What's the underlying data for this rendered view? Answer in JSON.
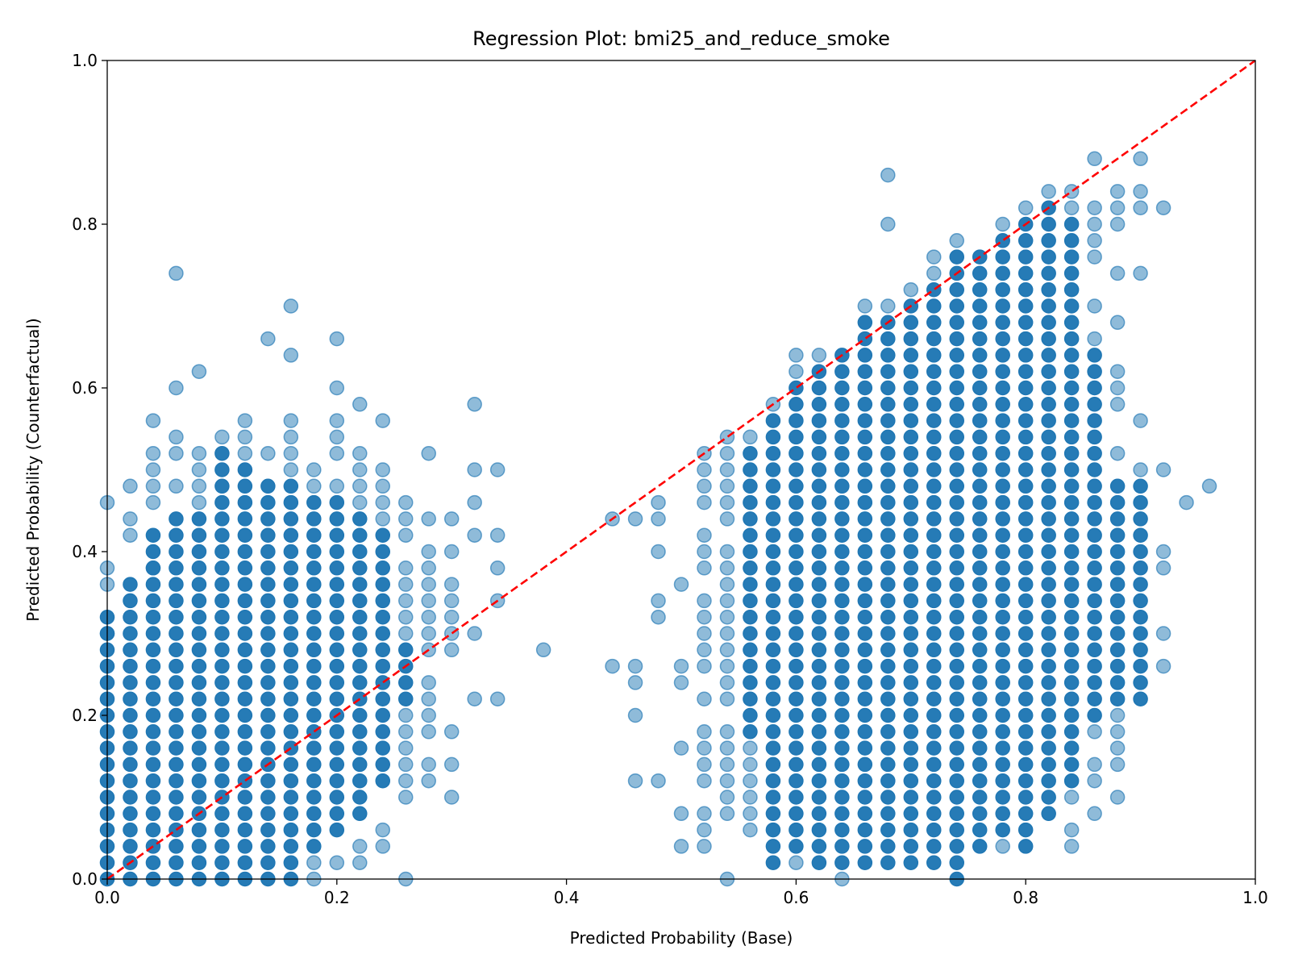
{
  "chart_data": {
    "type": "scatter",
    "title": "Regression Plot: bmi25_and_reduce_smoke",
    "xlabel": "Predicted Probability (Base)",
    "ylabel": "Predicted Probability (Counterfactual)",
    "xlim": [
      0.0,
      1.0
    ],
    "ylim": [
      0.0,
      1.0
    ],
    "xticks": [
      "0.0",
      "0.2",
      "0.4",
      "0.6",
      "0.8",
      "1.0"
    ],
    "yticks": [
      "0.0",
      "0.2",
      "0.4",
      "0.6",
      "0.8",
      "1.0"
    ],
    "grid": false,
    "legend": "none",
    "point_color": "#1f77b4",
    "point_alpha": 0.5,
    "reference_line": {
      "x": [
        0.0,
        1.0
      ],
      "y": [
        0.0,
        1.0
      ],
      "style": "dashed",
      "color": "#ff0000"
    },
    "x_grid_step": 0.02,
    "y_grid_step": 0.02,
    "columns": [
      {
        "x": 0.0,
        "dense": [
          0.0,
          0.32
        ],
        "sparse": [
          0.36,
          0.38,
          0.46,
          0.3
        ]
      },
      {
        "x": 0.02,
        "dense": [
          0.0,
          0.36
        ],
        "sparse": [
          0.42,
          0.44,
          0.48
        ]
      },
      {
        "x": 0.04,
        "dense": [
          0.0,
          0.42
        ],
        "sparse": [
          0.46,
          0.48,
          0.5,
          0.52,
          0.56,
          0.38
        ]
      },
      {
        "x": 0.06,
        "dense": [
          0.0,
          0.44
        ],
        "sparse": [
          0.48,
          0.52,
          0.54,
          0.6,
          0.74
        ]
      },
      {
        "x": 0.08,
        "dense": [
          0.0,
          0.44
        ],
        "sparse": [
          0.46,
          0.48,
          0.5,
          0.52,
          0.62
        ]
      },
      {
        "x": 0.1,
        "dense": [
          0.0,
          0.52
        ],
        "sparse": [
          0.54
        ]
      },
      {
        "x": 0.12,
        "dense": [
          0.0,
          0.5
        ],
        "sparse": [
          0.52,
          0.54,
          0.56
        ]
      },
      {
        "x": 0.14,
        "dense": [
          0.0,
          0.48
        ],
        "sparse": [
          0.52,
          0.66
        ]
      },
      {
        "x": 0.16,
        "dense": [
          0.0,
          0.48
        ],
        "sparse": [
          0.5,
          0.52,
          0.54,
          0.56,
          0.64,
          0.7
        ]
      },
      {
        "x": 0.18,
        "dense": [
          0.04,
          0.46
        ],
        "sparse": [
          0.0,
          0.02,
          0.48,
          0.5
        ]
      },
      {
        "x": 0.2,
        "dense": [
          0.06,
          0.46
        ],
        "sparse": [
          0.02,
          0.48,
          0.52,
          0.54,
          0.56,
          0.6,
          0.66
        ]
      },
      {
        "x": 0.22,
        "dense": [
          0.08,
          0.44
        ],
        "sparse": [
          0.02,
          0.04,
          0.46,
          0.48,
          0.5,
          0.52,
          0.58
        ]
      },
      {
        "x": 0.24,
        "dense": [
          0.12,
          0.42
        ],
        "sparse": [
          0.04,
          0.06,
          0.44,
          0.46,
          0.48,
          0.5,
          0.56
        ]
      },
      {
        "x": 0.26,
        "dense": [
          0.22,
          0.28
        ],
        "sparse": [
          0.0,
          0.1,
          0.12,
          0.14,
          0.16,
          0.18,
          0.2,
          0.3,
          0.32,
          0.34,
          0.36,
          0.38,
          0.42,
          0.44,
          0.46
        ]
      },
      {
        "x": 0.28,
        "sparse": [
          0.12,
          0.14,
          0.18,
          0.2,
          0.22,
          0.24,
          0.28,
          0.3,
          0.32,
          0.34,
          0.36,
          0.38,
          0.4,
          0.44,
          0.52
        ]
      },
      {
        "x": 0.3,
        "sparse": [
          0.1,
          0.14,
          0.18,
          0.28,
          0.3,
          0.32,
          0.34,
          0.36,
          0.4,
          0.44
        ]
      },
      {
        "x": 0.32,
        "sparse": [
          0.22,
          0.3,
          0.42,
          0.46,
          0.5,
          0.58
        ]
      },
      {
        "x": 0.34,
        "sparse": [
          0.22,
          0.34,
          0.38,
          0.42,
          0.5
        ]
      },
      {
        "x": 0.38,
        "sparse": [
          0.28
        ]
      },
      {
        "x": 0.44,
        "sparse": [
          0.26,
          0.44
        ]
      },
      {
        "x": 0.46,
        "sparse": [
          0.12,
          0.2,
          0.24,
          0.26,
          0.44
        ]
      },
      {
        "x": 0.48,
        "sparse": [
          0.12,
          0.32,
          0.34,
          0.4,
          0.44,
          0.46
        ]
      },
      {
        "x": 0.5,
        "sparse": [
          0.04,
          0.08,
          0.16,
          0.24,
          0.26,
          0.36
        ]
      },
      {
        "x": 0.52,
        "sparse": [
          0.04,
          0.06,
          0.08,
          0.12,
          0.14,
          0.16,
          0.18,
          0.22,
          0.26,
          0.28,
          0.3,
          0.32,
          0.34,
          0.38,
          0.4,
          0.42,
          0.46,
          0.48,
          0.5,
          0.52
        ]
      },
      {
        "x": 0.54,
        "sparse": [
          0.0,
          0.08,
          0.1,
          0.12,
          0.14,
          0.16,
          0.18,
          0.22,
          0.24,
          0.26,
          0.28,
          0.3,
          0.32,
          0.34,
          0.36,
          0.38,
          0.4,
          0.44,
          0.46,
          0.48,
          0.5,
          0.52,
          0.54
        ]
      },
      {
        "x": 0.56,
        "dense": [
          0.18,
          0.52
        ],
        "sparse": [
          0.06,
          0.08,
          0.1,
          0.12,
          0.14,
          0.16,
          0.54
        ]
      },
      {
        "x": 0.58,
        "dense": [
          0.02,
          0.56
        ],
        "sparse": [
          0.58
        ]
      },
      {
        "x": 0.6,
        "dense": [
          0.04,
          0.6
        ],
        "sparse": [
          0.02,
          0.62,
          0.64
        ]
      },
      {
        "x": 0.62,
        "dense": [
          0.02,
          0.62
        ],
        "sparse": [
          0.64
        ]
      },
      {
        "x": 0.64,
        "dense": [
          0.02,
          0.64
        ],
        "sparse": [
          0.0
        ]
      },
      {
        "x": 0.66,
        "dense": [
          0.02,
          0.68
        ],
        "sparse": [
          0.7
        ]
      },
      {
        "x": 0.68,
        "dense": [
          0.02,
          0.68
        ],
        "sparse": [
          0.7,
          0.8,
          0.86
        ]
      },
      {
        "x": 0.7,
        "dense": [
          0.02,
          0.7
        ],
        "sparse": [
          0.72
        ]
      },
      {
        "x": 0.72,
        "dense": [
          0.02,
          0.72
        ],
        "sparse": [
          0.74,
          0.76
        ]
      },
      {
        "x": 0.74,
        "dense": [
          0.0,
          0.76
        ],
        "sparse": [
          0.78
        ]
      },
      {
        "x": 0.76,
        "dense": [
          0.04,
          0.76
        ]
      },
      {
        "x": 0.78,
        "dense": [
          0.06,
          0.78
        ],
        "sparse": [
          0.04,
          0.8
        ]
      },
      {
        "x": 0.8,
        "dense": [
          0.04,
          0.8
        ],
        "sparse": [
          0.82
        ]
      },
      {
        "x": 0.82,
        "dense": [
          0.08,
          0.82
        ],
        "sparse": [
          0.84
        ]
      },
      {
        "x": 0.84,
        "dense": [
          0.12,
          0.8
        ],
        "sparse": [
          0.04,
          0.06,
          0.1,
          0.82,
          0.84
        ]
      },
      {
        "x": 0.86,
        "dense": [
          0.2,
          0.64
        ],
        "sparse": [
          0.08,
          0.12,
          0.14,
          0.18,
          0.66,
          0.7,
          0.76,
          0.78,
          0.8,
          0.82,
          0.88
        ]
      },
      {
        "x": 0.88,
        "dense": [
          0.22,
          0.48
        ],
        "sparse": [
          0.1,
          0.14,
          0.16,
          0.18,
          0.2,
          0.52,
          0.58,
          0.6,
          0.62,
          0.68,
          0.74,
          0.8,
          0.82,
          0.84
        ]
      },
      {
        "x": 0.9,
        "dense": [
          0.22,
          0.48
        ],
        "sparse": [
          0.5,
          0.56,
          0.74,
          0.82,
          0.84,
          0.88
        ]
      },
      {
        "x": 0.92,
        "sparse": [
          0.26,
          0.3,
          0.38,
          0.4,
          0.5,
          0.82
        ]
      },
      {
        "x": 0.94,
        "sparse": [
          0.46
        ]
      },
      {
        "x": 0.96,
        "sparse": [
          0.48
        ]
      }
    ]
  }
}
